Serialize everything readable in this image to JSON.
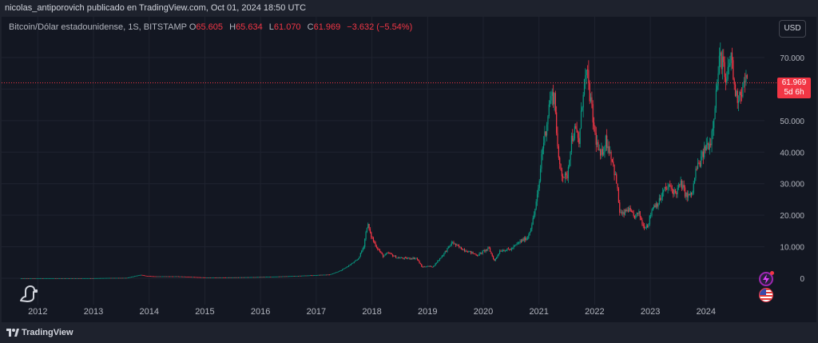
{
  "header": {
    "publish_line": "nicolas_antiporovich publicado en TradingView.com, Oct 01, 2024 18:50 UTC"
  },
  "legend": {
    "symbol": "Bitcoin/Dólar estadounidense, 1S, BITSTAMP",
    "o_label": "O",
    "o_value": "65.605",
    "h_label": "H",
    "h_value": "65.634",
    "l_label": "L",
    "l_value": "61.070",
    "c_label": "C",
    "c_value": "61.969",
    "change": "−3.632 (−5.54%)"
  },
  "currency_button": "USD",
  "price_badge": {
    "price": "61.969",
    "countdown": "5d 6h"
  },
  "footer": {
    "brand": "TradingView"
  },
  "icons": {
    "logo": "tradingview-logo-icon",
    "dino": "dino-icon",
    "lightning": "lightning-icon",
    "flag": "us-flag-icon"
  },
  "colors": {
    "up": "#089981",
    "down": "#f23645",
    "background": "#131722",
    "grid": "#1f2330",
    "text": "#b2b5be"
  },
  "chart_data": {
    "type": "candlestick",
    "title": "Bitcoin/Dólar estadounidense, 1S, BITSTAMP",
    "currency": "USD",
    "y_scale": "linear",
    "ylim": [
      -5000,
      75000
    ],
    "y_ticks": [
      0,
      10000,
      20000,
      30000,
      40000,
      50000,
      60000,
      70000
    ],
    "y_tick_labels": [
      "0",
      "10.000",
      "20.000",
      "30.000",
      "40.000",
      "50.000",
      "60.000",
      "70.000"
    ],
    "x_ticks": [
      2012,
      2013,
      2014,
      2015,
      2016,
      2017,
      2018,
      2019,
      2020,
      2021,
      2022,
      2023,
      2024
    ],
    "x_tick_labels": [
      "2012",
      "2013",
      "2014",
      "2015",
      "2016",
      "2017",
      "2018",
      "2019",
      "2020",
      "2021",
      "2022",
      "2023",
      "2024"
    ],
    "last_price": 61969,
    "grid": true,
    "series": [
      {
        "name": "BTCUSD",
        "x": [
          2011.7,
          2012.0,
          2012.5,
          2013.0,
          2013.3,
          2013.6,
          2013.85,
          2013.92,
          2014.1,
          2014.5,
          2015.0,
          2015.5,
          2016.0,
          2016.5,
          2017.0,
          2017.25,
          2017.45,
          2017.6,
          2017.75,
          2017.85,
          2017.92,
          2017.97,
          2018.05,
          2018.12,
          2018.2,
          2018.3,
          2018.45,
          2018.6,
          2018.8,
          2018.9,
          2018.97,
          2019.1,
          2019.3,
          2019.45,
          2019.5,
          2019.6,
          2019.8,
          2019.9,
          2020.0,
          2020.1,
          2020.2,
          2020.3,
          2020.5,
          2020.65,
          2020.8,
          2020.9,
          2021.0,
          2021.05,
          2021.12,
          2021.2,
          2021.28,
          2021.35,
          2021.42,
          2021.5,
          2021.58,
          2021.65,
          2021.72,
          2021.8,
          2021.86,
          2021.92,
          2022.0,
          2022.1,
          2022.2,
          2022.3,
          2022.4,
          2022.45,
          2022.5,
          2022.6,
          2022.7,
          2022.8,
          2022.87,
          2022.95,
          2023.05,
          2023.15,
          2023.25,
          2023.35,
          2023.45,
          2023.55,
          2023.65,
          2023.75,
          2023.82,
          2023.9,
          2024.0,
          2024.08,
          2024.14,
          2024.2,
          2024.25,
          2024.3,
          2024.35,
          2024.4,
          2024.45,
          2024.5,
          2024.55,
          2024.6,
          2024.65,
          2024.7,
          2024.75
        ],
        "close": [
          5,
          6,
          10,
          14,
          100,
          120,
          1100,
          800,
          600,
          600,
          250,
          270,
          400,
          650,
          1000,
          1200,
          2500,
          4200,
          6000,
          10000,
          17500,
          14000,
          11000,
          9000,
          7000,
          8000,
          6500,
          6300,
          6400,
          3500,
          3800,
          3700,
          8000,
          11500,
          10500,
          9500,
          8000,
          7300,
          8500,
          9500,
          5500,
          8800,
          9200,
          11500,
          13000,
          19000,
          29000,
          40000,
          47000,
          57000,
          58000,
          37000,
          33000,
          31500,
          44000,
          47000,
          43000,
          61000,
          65000,
          57000,
          46000,
          38000,
          44000,
          39000,
          29500,
          21000,
          20000,
          22000,
          19500,
          20500,
          16500,
          16800,
          23000,
          24000,
          28000,
          29000,
          27000,
          30000,
          26000,
          26500,
          34500,
          37000,
          42000,
          43000,
          52000,
          62000,
          70000,
          69000,
          60000,
          66000,
          71000,
          62000,
          57000,
          59000,
          60000,
          63000,
          61969
        ]
      }
    ]
  }
}
